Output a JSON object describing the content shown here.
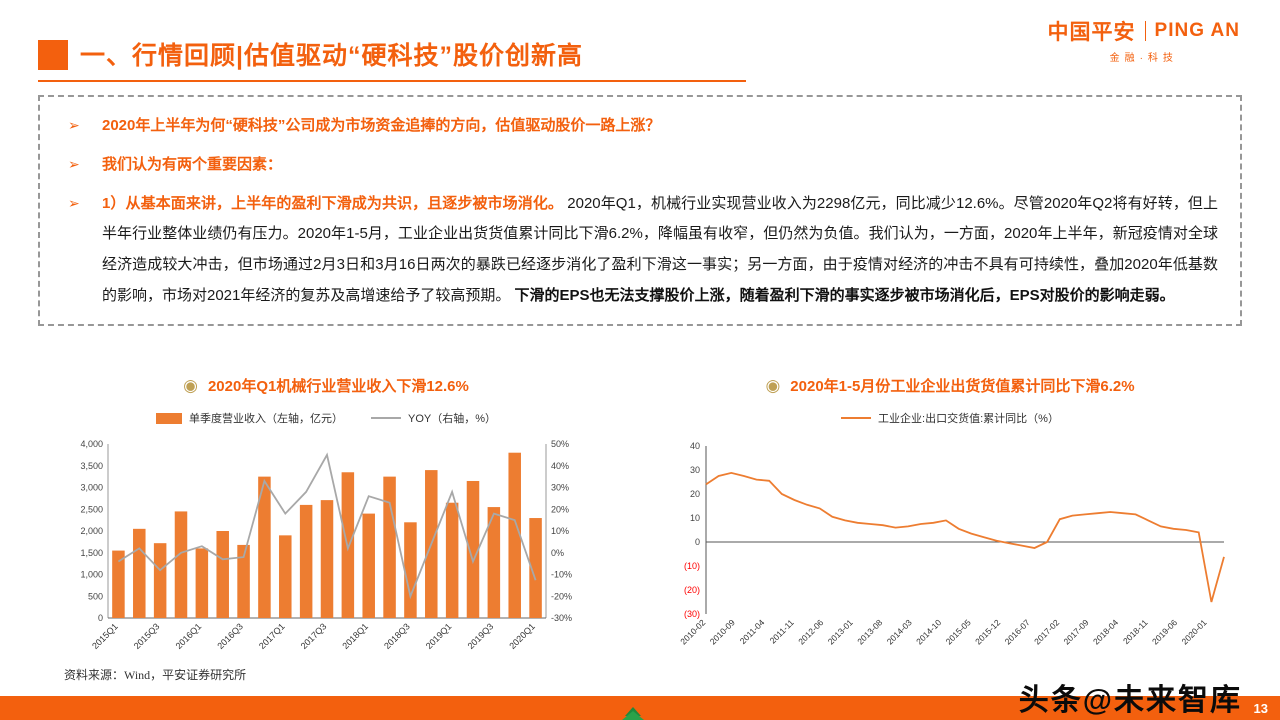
{
  "header": {
    "title": "一、行情回顾|估值驱动“硬科技”股价创新高",
    "logo": {
      "cn": "中国平安",
      "en": "PING AN",
      "sub": "金融·科技"
    }
  },
  "icons": {
    "chart_bullet": "◉",
    "bullet_arrow": "➢"
  },
  "colors": {
    "accent": "#f3600e",
    "bar_orange": "#ed7d31",
    "yoy_gray": "#a8a8a8",
    "negative_red": "#ff0000",
    "gold_icon": "#bfa054"
  },
  "callout": {
    "bullet1": "2020年上半年为何“硬科技”公司成为市场资金追捧的方向，估值驱动股价一路上涨？",
    "bullet2": "我们认为有两个重要因素：",
    "bullet3_lead": "1）从基本面来讲，上半年的盈利下滑成为共识，且逐步被市场消化。",
    "bullet3_body": "2020年Q1，机械行业实现营业收入为2298亿元，同比减少12.6%。尽管2020年Q2将有好转，但上半年行业整体业绩仍有压力。2020年1-5月，工业企业出货货值累计同比下滑6.2%，降幅虽有收窄，但仍然为负值。我们认为，一方面，2020年上半年，新冠疫情对全球经济造成较大冲击，但市场通过2月3日和3月16日两次的暴跌已经逐步消化了盈利下滑这一事实；另一方面，由于疫情对经济的冲击不具有可持续性，叠加2020年低基数的影响，市场对2021年经济的复苏及高增速给予了较高预期。",
    "bullet3_emphasis": "下滑的EPS也无法支撑股价上涨，随着盈利下滑的事实逐步被市场消化后，EPS对股价的影响走弱。"
  },
  "chart_data": [
    {
      "type": "bar",
      "title": "2020年Q1机械行业营业收入下滑12.6%",
      "legend": [
        "单季度营业收入（左轴，亿元）",
        "YOY（右轴，%）"
      ],
      "categories": [
        "2015Q1",
        "2015Q2",
        "2015Q3",
        "2015Q4",
        "2016Q1",
        "2016Q2",
        "2016Q3",
        "2016Q4",
        "2017Q1",
        "2017Q2",
        "2017Q3",
        "2017Q4",
        "2018Q1",
        "2018Q2",
        "2018Q3",
        "2018Q4",
        "2019Q1",
        "2019Q2",
        "2019Q3",
        "2019Q4",
        "2020Q1"
      ],
      "x_labels_shown": [
        "2015Q1",
        "2015Q3",
        "2016Q1",
        "2016Q3",
        "2017Q1",
        "2017Q3",
        "2018Q1",
        "2018Q3",
        "2019Q1",
        "2019Q3",
        "2020Q1"
      ],
      "series": [
        {
          "name": "单季度营业收入",
          "type": "bar",
          "axis": "left",
          "color": "#ed7d31",
          "values": [
            1550,
            2050,
            1720,
            2450,
            1600,
            2000,
            1680,
            3250,
            1900,
            2600,
            2710,
            3350,
            2400,
            3250,
            2200,
            3400,
            2650,
            3150,
            2550,
            3800,
            2298
          ]
        },
        {
          "name": "YOY",
          "type": "line",
          "axis": "right",
          "color": "#a8a8a8",
          "values": [
            -4,
            2,
            -8,
            0,
            3,
            -3,
            -2,
            33,
            18,
            28,
            45,
            2,
            26,
            23,
            -20,
            4,
            28,
            -4,
            18,
            15,
            -12.6
          ]
        }
      ],
      "left_axis": {
        "min": 0,
        "max": 4000,
        "step": 500
      },
      "right_axis": {
        "min": -30,
        "max": 50,
        "step": 10,
        "format": "percent"
      },
      "grid": false,
      "legend_position": "top"
    },
    {
      "type": "line",
      "title": "2020年1-5月份工业企业出货货值累计同比下滑6.2%",
      "legend": [
        "工业企业:出口交货值:累计同比（%）"
      ],
      "color": "#ed7d31",
      "negative_color": "#ff0000",
      "y_axis": {
        "min": -30,
        "max": 40,
        "step": 10,
        "negative_style": "red-parentheses"
      },
      "x_total_months": 123,
      "x_tick_months": [
        0,
        7,
        14,
        21,
        28,
        35,
        42,
        49,
        56,
        63,
        70,
        77,
        84,
        91,
        98,
        105,
        112,
        119
      ],
      "x_tick_labels": [
        "2010-02",
        "2010-09",
        "2011-04",
        "2011-11",
        "2012-06",
        "2013-01",
        "2013-08",
        "2014-03",
        "2014-10",
        "2015-05",
        "2015-12",
        "2016-07",
        "2017-02",
        "2017-09",
        "2018-04",
        "2018-11",
        "2019-06",
        "2020-01"
      ],
      "values": [
        24,
        27.5,
        28.8,
        27.5,
        26,
        25.5,
        20,
        17.5,
        15.5,
        14,
        10.5,
        9,
        8,
        7.5,
        7,
        6,
        6.5,
        7.5,
        8,
        9,
        5.5,
        3.5,
        2,
        0.5,
        -0.5,
        -1.5,
        -2.5,
        0,
        9.5,
        11,
        11.5,
        12,
        12.5,
        12,
        11.5,
        9,
        6.5,
        5.5,
        5,
        4,
        -25,
        -6.2
      ],
      "grid": false,
      "legend_position": "top"
    }
  ],
  "source": "资料来源：Wind，平安证券研究所",
  "footer": {
    "page": "13",
    "watermark": "头条@未来智库"
  }
}
